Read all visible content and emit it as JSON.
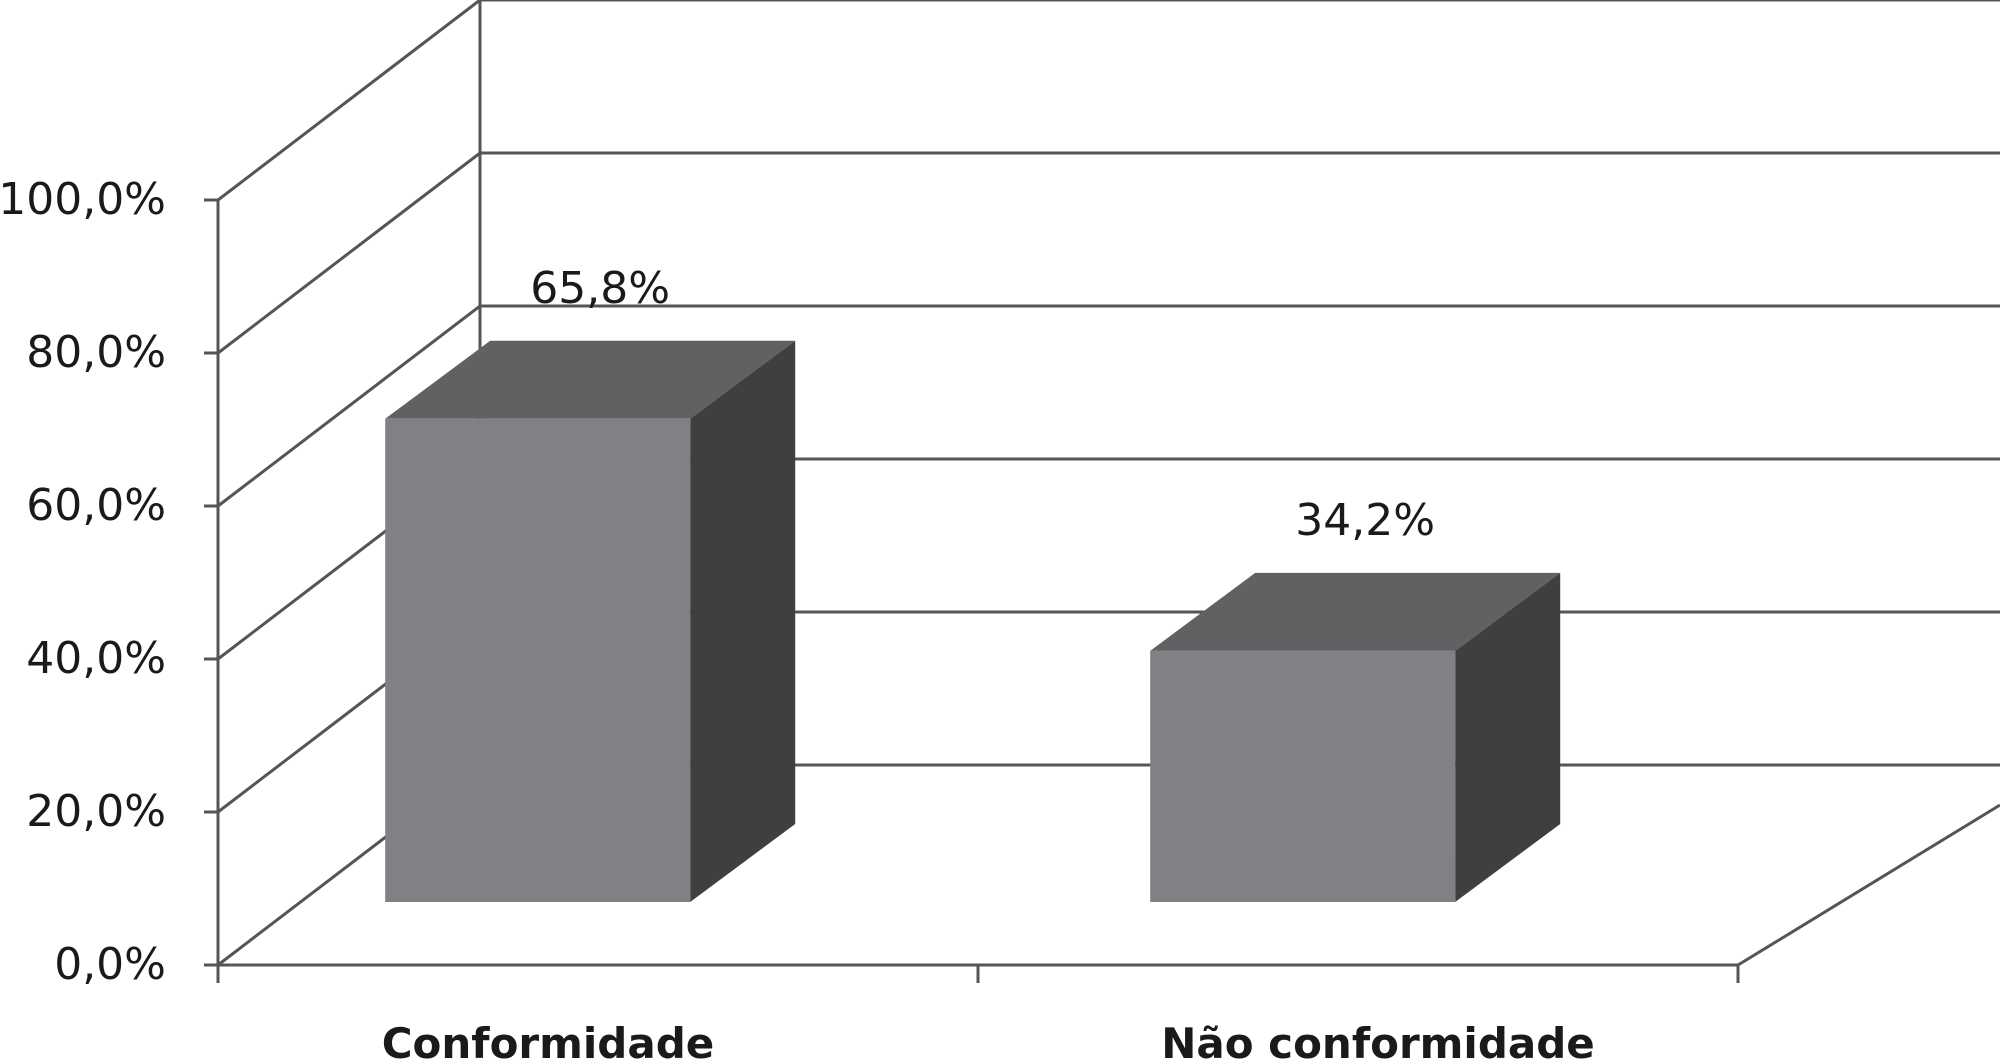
{
  "chart_data": {
    "type": "bar",
    "categories": [
      "Conformidade",
      "Não conformidade"
    ],
    "values": [
      65.8,
      34.2
    ],
    "data_labels": [
      "65,8%",
      "34,2%"
    ],
    "y_ticks": [
      0,
      20,
      40,
      60,
      80,
      100
    ],
    "y_tick_labels": [
      "0,0%",
      "20,0%",
      "40,0%",
      "60,0%",
      "80,0%",
      "100,0%"
    ],
    "ylim": [
      0,
      100
    ],
    "grid": true,
    "style": "3d-column",
    "colors": {
      "bar_front": "#808184",
      "bar_top": "#606163",
      "bar_side": "#3f3f3f",
      "gridline": "#555555",
      "text": "#1a1a1a"
    }
  }
}
